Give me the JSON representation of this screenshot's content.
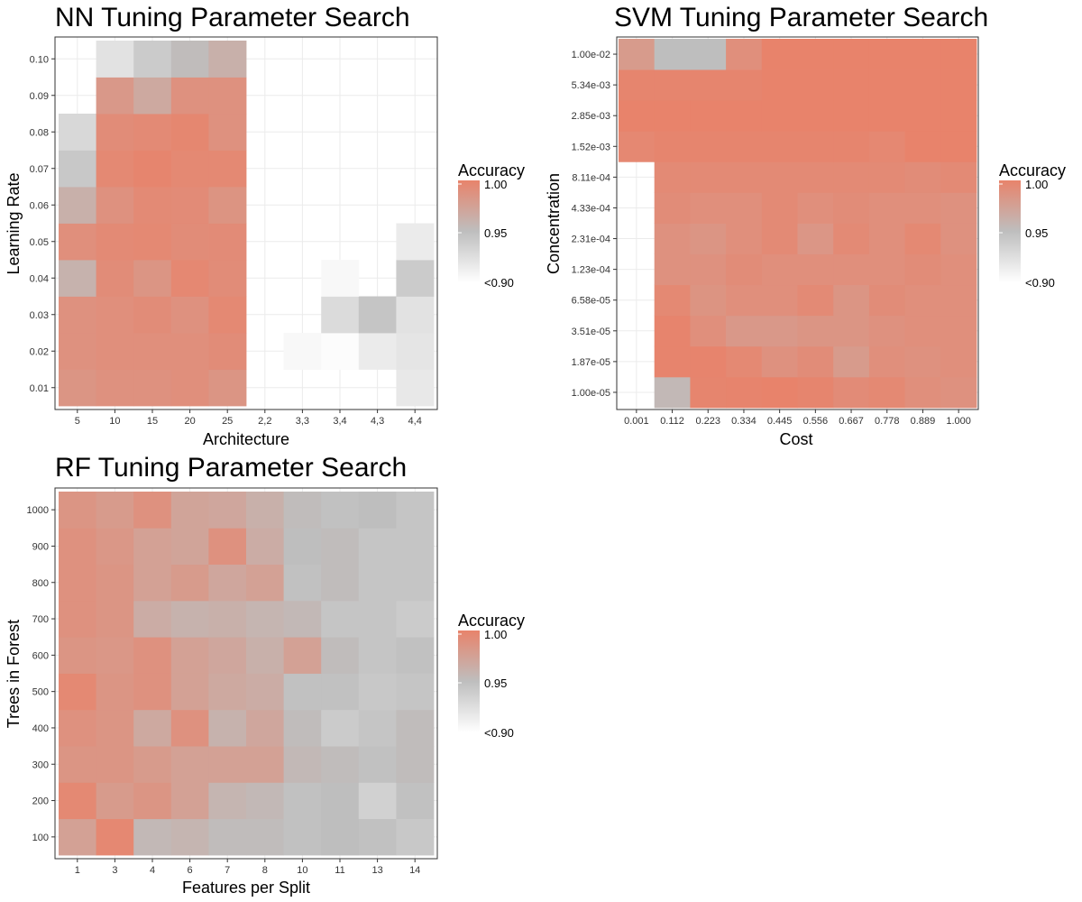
{
  "colors": {
    "low": "#ffffff",
    "mid": "#bebebe",
    "high": "#e8836b",
    "grid": "#ebebeb",
    "border": "#333333"
  },
  "legend": {
    "title": "Accuracy",
    "labels": [
      "1.00",
      "0.95",
      "<0.90"
    ],
    "scale": {
      "min": 0.9,
      "mid": 0.95,
      "max": 1.0
    }
  },
  "chart_data": [
    {
      "type": "heatmap",
      "title": "NN Tuning Parameter Search",
      "xlabel": "Architecture",
      "ylabel": "Learning Rate",
      "x_categories": [
        "5",
        "10",
        "15",
        "20",
        "25",
        "2,2",
        "3,3",
        "3,4",
        "4,3",
        "4,4"
      ],
      "y_categories": [
        "0.01",
        "0.02",
        "0.03",
        "0.04",
        "0.05",
        "0.06",
        "0.07",
        "0.08",
        "0.09",
        "0.10"
      ],
      "fill_scale": "Accuracy",
      "values": [
        [
          0.985,
          0.988,
          0.988,
          0.99,
          0.985,
          null,
          null,
          null,
          null,
          0.918
        ],
        [
          0.988,
          0.99,
          0.99,
          0.99,
          0.992,
          null,
          0.905,
          0.902,
          0.915,
          0.92
        ],
        [
          0.988,
          0.99,
          0.992,
          0.988,
          0.995,
          null,
          null,
          0.928,
          0.945,
          0.922
        ],
        [
          0.96,
          0.992,
          0.985,
          0.996,
          0.992,
          null,
          null,
          0.905,
          null,
          0.94
        ],
        [
          0.99,
          0.994,
          0.995,
          0.992,
          0.993,
          null,
          null,
          null,
          null,
          0.915
        ],
        [
          0.962,
          0.988,
          0.994,
          0.993,
          0.986,
          null,
          null,
          null,
          null,
          null
        ],
        [
          0.942,
          0.995,
          0.998,
          0.995,
          0.995,
          null,
          null,
          null,
          null,
          null
        ],
        [
          0.93,
          0.992,
          0.994,
          0.997,
          0.988,
          null,
          null,
          null,
          null,
          null
        ],
        [
          null,
          0.982,
          0.968,
          0.988,
          0.988,
          null,
          null,
          null,
          null,
          null
        ],
        [
          null,
          0.922,
          0.94,
          0.952,
          0.962,
          null,
          null,
          null,
          null,
          null
        ]
      ]
    },
    {
      "type": "heatmap",
      "title": "SVM Tuning Parameter Search",
      "xlabel": "Cost",
      "ylabel": "Concentration",
      "x_categories": [
        "0.001",
        "0.112",
        "0.223",
        "0.334",
        "0.445",
        "0.556",
        "0.667",
        "0.778",
        "0.889",
        "1.000"
      ],
      "y_categories": [
        "1.00e-05",
        "1.87e-05",
        "3.51e-05",
        "6.58e-05",
        "1.23e-04",
        "2.31e-04",
        "4.33e-04",
        "8.11e-04",
        "1.52e-03",
        "2.85e-03",
        "5.34e-03",
        "1.00e-02"
      ],
      "fill_scale": "Accuracy",
      "values": [
        [
          null,
          0.955,
          0.998,
          0.999,
          1.0,
          0.998,
          0.993,
          0.995,
          0.99,
          0.988
        ],
        [
          null,
          0.999,
          0.999,
          0.995,
          0.988,
          0.992,
          0.98,
          0.99,
          0.988,
          0.99
        ],
        [
          null,
          0.999,
          0.99,
          0.982,
          0.982,
          0.985,
          0.985,
          0.988,
          0.99,
          0.99
        ],
        [
          null,
          0.995,
          0.986,
          0.99,
          0.99,
          0.994,
          0.985,
          0.992,
          0.99,
          0.99
        ],
        [
          null,
          0.988,
          0.988,
          0.992,
          0.99,
          0.99,
          0.99,
          0.99,
          0.992,
          0.99
        ],
        [
          null,
          0.988,
          0.985,
          0.99,
          0.994,
          0.984,
          0.994,
          0.99,
          0.995,
          0.988
        ],
        [
          null,
          0.992,
          0.99,
          0.99,
          0.994,
          0.99,
          0.992,
          0.99,
          0.99,
          0.988
        ],
        [
          null,
          0.994,
          0.994,
          0.994,
          0.994,
          0.994,
          0.994,
          0.994,
          0.992,
          0.994
        ],
        [
          0.996,
          0.998,
          0.998,
          0.998,
          0.998,
          0.998,
          0.998,
          0.996,
          1.0,
          1.0
        ],
        [
          1.0,
          1.0,
          1.0,
          1.0,
          1.0,
          1.0,
          1.0,
          1.0,
          1.0,
          1.0
        ],
        [
          0.998,
          0.998,
          0.998,
          0.998,
          1.0,
          1.0,
          1.0,
          1.0,
          1.0,
          1.0
        ],
        [
          0.98,
          0.95,
          0.95,
          0.99,
          1.0,
          1.0,
          1.0,
          1.0,
          1.0,
          1.0
        ]
      ]
    },
    {
      "type": "heatmap",
      "title": "RF Tuning Parameter Search",
      "xlabel": "Features per Split",
      "ylabel": "Trees in Forest",
      "x_categories": [
        "1",
        "3",
        "4",
        "6",
        "7",
        "8",
        "10",
        "11",
        "13",
        "14"
      ],
      "y_categories": [
        "100",
        "200",
        "300",
        "400",
        "500",
        "600",
        "700",
        "800",
        "900",
        "1000"
      ],
      "fill_scale": "Accuracy",
      "values": [
        [
          0.975,
          0.996,
          0.955,
          0.958,
          0.952,
          0.952,
          0.948,
          0.95,
          0.948,
          0.942
        ],
        [
          0.995,
          0.98,
          0.985,
          0.975,
          0.958,
          0.955,
          0.948,
          0.95,
          0.935,
          0.948
        ],
        [
          0.985,
          0.985,
          0.98,
          0.975,
          0.975,
          0.975,
          0.955,
          0.952,
          0.948,
          0.952
        ],
        [
          0.988,
          0.985,
          0.968,
          0.988,
          0.96,
          0.97,
          0.952,
          0.94,
          0.945,
          0.952
        ],
        [
          0.995,
          0.985,
          0.988,
          0.975,
          0.968,
          0.965,
          0.948,
          0.948,
          0.942,
          0.945
        ],
        [
          0.985,
          0.983,
          0.988,
          0.975,
          0.97,
          0.962,
          0.975,
          0.952,
          0.945,
          0.948
        ],
        [
          0.988,
          0.985,
          0.965,
          0.96,
          0.962,
          0.958,
          0.955,
          0.945,
          0.945,
          0.94
        ],
        [
          0.988,
          0.985,
          0.975,
          0.98,
          0.97,
          0.975,
          0.948,
          0.952,
          0.945,
          0.945
        ],
        [
          0.988,
          0.983,
          0.975,
          0.972,
          0.988,
          0.965,
          0.95,
          0.952,
          0.945,
          0.945
        ],
        [
          0.985,
          0.98,
          0.988,
          0.972,
          0.97,
          0.962,
          0.952,
          0.948,
          0.95,
          0.945
        ]
      ]
    }
  ]
}
